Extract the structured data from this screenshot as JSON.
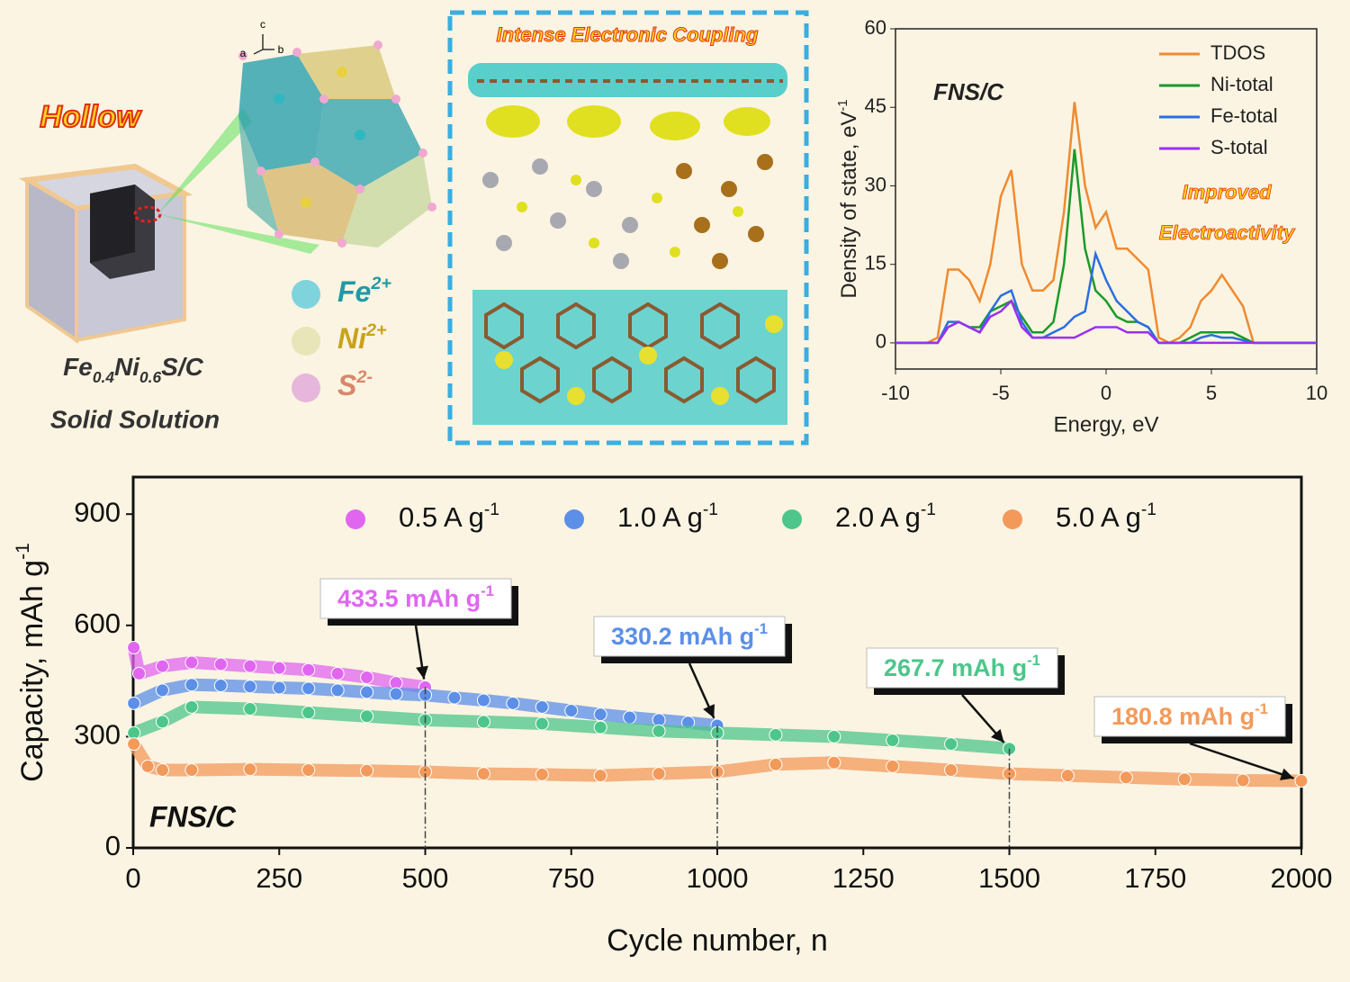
{
  "illustration": {
    "hollow": "Hollow",
    "formula": [
      "Fe",
      "0.4",
      "Ni",
      "0.6",
      "S/C"
    ],
    "solid": "Solid Solution",
    "axes": [
      "c",
      "a",
      "b"
    ],
    "ions": [
      {
        "symbol": "Fe",
        "charge": "2+",
        "color": "#7fd3dc",
        "text_color": "#1f9aa6"
      },
      {
        "symbol": "Ni",
        "charge": "2+",
        "color": "#e8e6b8",
        "text_color": "#c9a21a"
      },
      {
        "symbol": "S",
        "charge": "2-",
        "color": "#e6b6dc",
        "text_color": "#d9866a"
      }
    ],
    "coupling": "Intense Electronic Coupling"
  },
  "chart_data": [
    {
      "type": "line",
      "title": "FNS/C",
      "annotation": [
        "Improved",
        "Electroactivity"
      ],
      "xlabel": "Energy, eV",
      "ylabel": "Density of state, eV",
      "ylabel_sup": "-1",
      "x": [
        -10,
        -9.5,
        -9,
        -8.5,
        -8,
        -7.5,
        -7,
        -6.5,
        -6,
        -5.5,
        -5,
        -4.5,
        -4,
        -3.5,
        -3,
        -2.5,
        -2,
        -1.5,
        -1,
        -0.5,
        0,
        0.5,
        1,
        1.5,
        2,
        2.5,
        3,
        3.5,
        4,
        4.5,
        5,
        5.5,
        6,
        6.5,
        7,
        7.5,
        8,
        8.5,
        9,
        9.5,
        10
      ],
      "series": [
        {
          "name": "TDOS",
          "color": "#f08a30",
          "values": [
            0,
            0,
            0,
            0,
            1,
            14,
            14,
            12,
            8,
            15,
            28,
            33,
            15,
            10,
            10,
            12,
            25,
            46,
            30,
            22,
            25,
            18,
            18,
            16,
            14,
            1,
            0,
            1,
            3,
            8,
            10,
            13,
            10,
            7,
            0,
            0,
            0,
            0,
            0,
            0,
            0
          ]
        },
        {
          "name": "Ni-total",
          "color": "#1a9a2a",
          "values": [
            0,
            0,
            0,
            0,
            0,
            3,
            4,
            3,
            3,
            6,
            7,
            8,
            5,
            2,
            2,
            4,
            15,
            37,
            18,
            10,
            8,
            5,
            4,
            4,
            3,
            0,
            0,
            0,
            1,
            2,
            2,
            2,
            2,
            1,
            0,
            0,
            0,
            0,
            0,
            0,
            0
          ]
        },
        {
          "name": "Fe-total",
          "color": "#2a6fe0",
          "values": [
            0,
            0,
            0,
            0,
            0,
            4,
            4,
            3,
            2,
            6,
            9,
            10,
            4,
            1,
            1,
            2,
            3,
            5,
            6,
            17,
            12,
            8,
            6,
            4,
            3,
            0,
            0,
            0,
            0,
            1,
            1.5,
            1,
            1,
            0.5,
            0,
            0,
            0,
            0,
            0,
            0,
            0
          ]
        },
        {
          "name": "S-total",
          "color": "#9b30f0",
          "values": [
            0,
            0,
            0,
            0,
            0,
            3,
            4,
            3,
            2,
            5,
            6,
            8,
            3,
            1,
            1,
            1,
            1,
            1,
            2,
            3,
            3,
            3,
            2,
            2,
            2,
            0,
            0,
            0,
            0,
            0,
            0,
            0,
            0,
            0,
            0,
            0,
            0,
            0,
            0,
            0,
            0
          ]
        }
      ],
      "xlim": [
        -10,
        10
      ],
      "ylim": [
        -5,
        60
      ],
      "xticks": [
        -10,
        -5,
        0,
        5,
        10
      ],
      "yticks": [
        0,
        15,
        30,
        45,
        60
      ],
      "legend": "upper right"
    },
    {
      "type": "scatter",
      "title": "FNS/C",
      "xlabel": "Cycle number, n",
      "ylabel": "Capacity, mAh g",
      "ylabel_sup": "-1",
      "series": [
        {
          "name": "0.5 A g",
          "name_sup": "-1",
          "color": "#e066f0",
          "x": [
            1,
            10,
            50,
            100,
            150,
            200,
            250,
            300,
            350,
            400,
            450,
            500
          ],
          "values": [
            540,
            470,
            490,
            500,
            495,
            490,
            485,
            480,
            470,
            460,
            445,
            433.5
          ]
        },
        {
          "name": "1.0 A g",
          "name_sup": "-1",
          "color": "#5b8fe8",
          "x": [
            1,
            50,
            100,
            150,
            200,
            250,
            300,
            350,
            400,
            450,
            500,
            550,
            600,
            650,
            700,
            750,
            800,
            850,
            900,
            950,
            1000
          ],
          "values": [
            390,
            425,
            440,
            438,
            435,
            432,
            430,
            425,
            420,
            415,
            412,
            405,
            398,
            390,
            380,
            370,
            360,
            352,
            345,
            338,
            330.2
          ]
        },
        {
          "name": "2.0 A g",
          "name_sup": "-1",
          "color": "#4cc68a",
          "x": [
            1,
            50,
            100,
            200,
            300,
            400,
            500,
            600,
            700,
            800,
            900,
            1000,
            1100,
            1200,
            1300,
            1400,
            1500
          ],
          "values": [
            310,
            340,
            380,
            375,
            365,
            355,
            345,
            340,
            335,
            325,
            315,
            310,
            305,
            300,
            290,
            280,
            267.7
          ]
        },
        {
          "name": "5.0 A g",
          "name_sup": "-1",
          "color": "#f39a5a",
          "x": [
            1,
            25,
            50,
            100,
            200,
            300,
            400,
            500,
            600,
            700,
            800,
            900,
            1000,
            1100,
            1200,
            1300,
            1400,
            1500,
            1600,
            1700,
            1800,
            1900,
            2000
          ],
          "values": [
            280,
            220,
            210,
            210,
            212,
            210,
            208,
            205,
            200,
            198,
            195,
            200,
            205,
            225,
            230,
            220,
            210,
            200,
            195,
            190,
            185,
            182,
            180.8
          ]
        }
      ],
      "annotations": [
        {
          "text": "433.5 mAh g",
          "sup": "-1",
          "x": 500,
          "y": 433.5
        },
        {
          "text": "330.2 mAh g",
          "sup": "-1",
          "x": 1000,
          "y": 330.2
        },
        {
          "text": "267.7 mAh g",
          "sup": "-1",
          "x": 1500,
          "y": 267.7
        },
        {
          "text": "180.8 mAh g",
          "sup": "-1",
          "x": 2000,
          "y": 180.8
        }
      ],
      "xlim": [
        0,
        2000
      ],
      "ylim": [
        0,
        1000
      ],
      "xticks": [
        0,
        250,
        500,
        750,
        1000,
        1250,
        1500,
        1750,
        2000
      ],
      "yticks": [
        0,
        300,
        600,
        900
      ],
      "legend": "top"
    }
  ]
}
